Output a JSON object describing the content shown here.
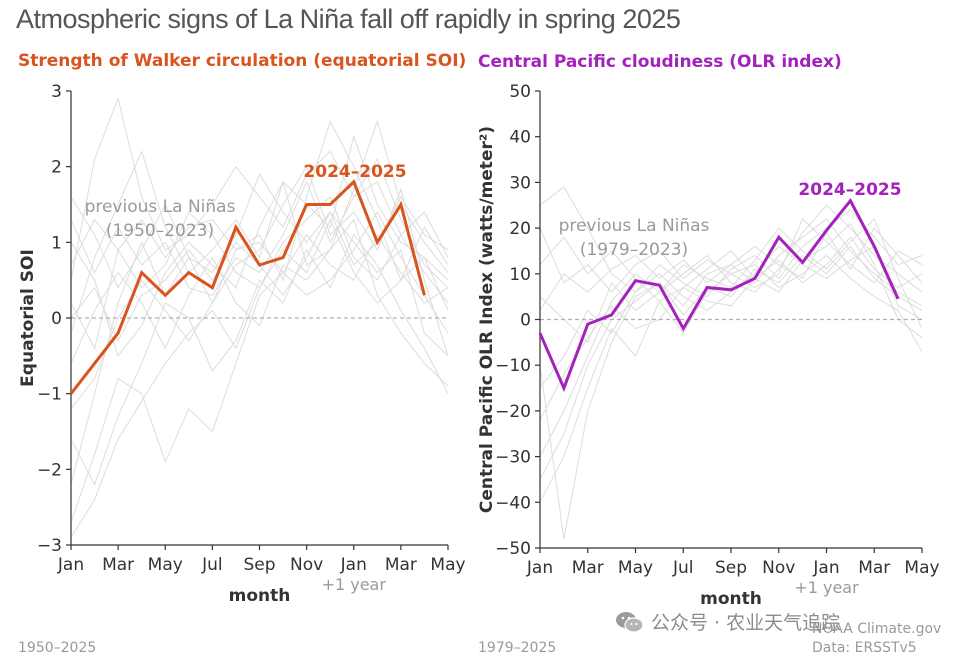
{
  "title": "Atmospheric signs of La Niña fall off rapidly in spring 2025",
  "colors": {
    "soi": "#d9541e",
    "olr": "#a322bc",
    "background_lines": "#dcdcdc",
    "axis": "#333333",
    "zero": "#b0b0b0",
    "note": "#9a9a9a"
  },
  "chart_data": [
    {
      "type": "line",
      "title": "Strength of Walker circulation (equatorial SOI)",
      "ylabel": "Equatorial SOI",
      "xlabel": "month",
      "ylim": [
        -3,
        3
      ],
      "yticks": [
        "3",
        "2",
        "1",
        "0",
        "−1",
        "−2",
        "−3"
      ],
      "ytick_values": [
        3,
        2,
        1,
        0,
        -1,
        -2,
        -3
      ],
      "xticks": [
        "Jan",
        "Mar",
        "May",
        "Jul",
        "Sep",
        "Nov",
        "Jan",
        "Mar",
        "May"
      ],
      "xtick_months": [
        0,
        2,
        4,
        6,
        8,
        10,
        12,
        14,
        16
      ],
      "year_note": "+1 year",
      "background_label": "previous La Niñas\n(1950–2023)",
      "series_label": "2024–2025",
      "period_note": "1950–2025",
      "series": [
        {
          "name": "2024–2025",
          "x": [
            0,
            1,
            2,
            3,
            4,
            5,
            6,
            7,
            8,
            9,
            10,
            11,
            12,
            13,
            14,
            15
          ],
          "values": [
            -1.0,
            -0.6,
            -0.2,
            0.6,
            0.3,
            0.6,
            0.4,
            1.2,
            0.7,
            0.8,
            1.5,
            1.5,
            1.8,
            1.0,
            1.5,
            0.3
          ]
        }
      ],
      "background_series": [
        [
          -0.2,
          0.8,
          1.5,
          2.2,
          1.2,
          0.6,
          0.9,
          1.3,
          0.8,
          1.8,
          1.5,
          1.2,
          2.4,
          1.5,
          1.0,
          0.8,
          0.5
        ],
        [
          0.5,
          2.1,
          2.9,
          1.6,
          0.9,
          1.1,
          1.5,
          2.0,
          1.6,
          1.2,
          1.9,
          2.2,
          1.6,
          1.8,
          1.1,
          0.6,
          0.2
        ],
        [
          -2.2,
          -1.0,
          0.2,
          1.0,
          0.3,
          0.8,
          0.2,
          0.9,
          1.1,
          0.5,
          1.6,
          2.6,
          2.0,
          1.3,
          0.5,
          1.2,
          0.7
        ],
        [
          1.0,
          0.5,
          -0.5,
          -0.1,
          0.6,
          1.0,
          0.7,
          0.4,
          1.2,
          1.8,
          0.7,
          0.9,
          1.7,
          2.6,
          1.5,
          1.0,
          0.6
        ],
        [
          -2.7,
          -1.8,
          -0.8,
          -1.0,
          -1.9,
          -1.2,
          -1.5,
          -0.6,
          0.3,
          0.6,
          0.3,
          0.5,
          0.9,
          1.4,
          0.8,
          0.3,
          -0.2
        ],
        [
          0.2,
          -0.4,
          0.9,
          0.4,
          0.7,
          1.4,
          1.1,
          0.6,
          0.4,
          1.0,
          1.3,
          1.6,
          0.8,
          0.5,
          1.1,
          1.4,
          0.8
        ],
        [
          -1.6,
          -2.2,
          -1.3,
          -0.6,
          0.2,
          0.0,
          -0.7,
          -0.3,
          0.5,
          0.2,
          0.9,
          0.4,
          1.1,
          0.7,
          0.1,
          -0.4,
          -1.0
        ],
        [
          1.6,
          1.1,
          0.4,
          0.9,
          1.5,
          0.8,
          0.6,
          1.1,
          1.9,
          1.4,
          1.0,
          1.4,
          0.7,
          1.0,
          1.6,
          1.1,
          0.9
        ],
        [
          -0.6,
          0.1,
          0.6,
          0.2,
          -0.4,
          0.3,
          0.8,
          0.2,
          -0.1,
          0.7,
          0.5,
          0.9,
          1.3,
          0.3,
          -0.2,
          -0.6,
          -0.9
        ],
        [
          0.7,
          1.3,
          0.9,
          1.3,
          0.8,
          1.2,
          1.3,
          0.9,
          1.0,
          0.6,
          1.1,
          0.7,
          0.5,
          1.1,
          0.6,
          0.2,
          0.4
        ],
        [
          -1.2,
          -0.8,
          0.0,
          0.5,
          0.1,
          -0.3,
          0.2,
          0.7,
          0.9,
          1.5,
          2.0,
          1.1,
          1.4,
          0.9,
          1.7,
          0.5,
          -0.5
        ],
        [
          -2.9,
          -2.4,
          -1.6,
          -1.1,
          -0.6,
          -0.2,
          0.1,
          -0.4,
          0.4,
          0.9,
          0.6,
          1.3,
          0.6,
          0.2,
          0.5,
          0.8,
          0.1
        ],
        [
          1.3,
          0.6,
          1.2,
          0.7,
          1.0,
          0.4,
          0.3,
          0.8,
          0.6,
          1.1,
          1.8,
          1.0,
          1.6,
          2.1,
          1.3,
          0.7,
          0.4
        ],
        [
          0.0,
          0.4,
          -0.3,
          0.3,
          0.5,
          0.9,
          0.5,
          1.0,
          0.7,
          0.3,
          0.8,
          1.4,
          1.0,
          0.6,
          0.9,
          -0.2,
          -0.5
        ]
      ]
    },
    {
      "type": "line",
      "title": "Central Pacific cloudiness (OLR index)",
      "ylabel": "Central Pacific OLR Index (watts/meter²)",
      "xlabel": "month",
      "ylim": [
        -50,
        50
      ],
      "yticks": [
        "50",
        "40",
        "30",
        "20",
        "10",
        "0",
        "−10",
        "−20",
        "−30",
        "−40",
        "−50"
      ],
      "ytick_values": [
        50,
        40,
        30,
        20,
        10,
        0,
        -10,
        -20,
        -30,
        -40,
        -50
      ],
      "xticks": [
        "Jan",
        "Mar",
        "May",
        "Jul",
        "Sep",
        "Nov",
        "Jan",
        "Mar",
        "May"
      ],
      "xtick_months": [
        0,
        2,
        4,
        6,
        8,
        10,
        12,
        14,
        16
      ],
      "year_note": "+1 year",
      "background_label": "previous La Niñas\n(1979–2023)",
      "series_label": "2024–2025",
      "period_note": "1979–2025",
      "series": [
        {
          "name": "2024–2025",
          "x": [
            0,
            1,
            2,
            3,
            4,
            5,
            6,
            7,
            8,
            9,
            10,
            11,
            12,
            13,
            14,
            15
          ],
          "values": [
            -3,
            -15,
            -1,
            1,
            8.5,
            7.5,
            -2,
            7,
            6.5,
            9,
            18,
            12.5,
            19.5,
            26,
            16,
            4.5
          ]
        }
      ],
      "background_series": [
        [
          -10,
          -48,
          -20,
          -5,
          5,
          8,
          3,
          10,
          12,
          8,
          14,
          18,
          22,
          15,
          10,
          6,
          3
        ],
        [
          25,
          29,
          20,
          10,
          6,
          12,
          8,
          5,
          11,
          14,
          9,
          16,
          20,
          24,
          18,
          12,
          14
        ],
        [
          -30,
          -20,
          -8,
          4,
          10,
          6,
          12,
          9,
          7,
          13,
          20,
          15,
          11,
          17,
          22,
          9,
          -2
        ],
        [
          5,
          0,
          -5,
          8,
          2,
          6,
          10,
          14,
          8,
          6,
          11,
          19,
          25,
          20,
          14,
          10,
          6
        ],
        [
          -40,
          -30,
          -15,
          -2,
          -8,
          4,
          -3,
          6,
          10,
          12,
          7,
          10,
          14,
          9,
          5,
          2,
          -7
        ],
        [
          12,
          18,
          10,
          15,
          9,
          4,
          7,
          11,
          15,
          9,
          13,
          8,
          12,
          18,
          11,
          7,
          10
        ],
        [
          -15,
          -8,
          2,
          -3,
          6,
          10,
          5,
          2,
          6,
          10,
          16,
          12,
          9,
          13,
          16,
          3,
          0
        ],
        [
          20,
          8,
          12,
          6,
          12,
          15,
          9,
          13,
          10,
          7,
          10,
          22,
          17,
          12,
          8,
          15,
          12
        ],
        [
          -22,
          -12,
          -4,
          3,
          -2,
          0,
          7,
          4,
          3,
          9,
          6,
          13,
          16,
          21,
          12,
          0,
          -4
        ],
        [
          2,
          10,
          6,
          11,
          14,
          9,
          13,
          8,
          12,
          16,
          12,
          9,
          19,
          11,
          20,
          14,
          8
        ],
        [
          -35,
          -25,
          -10,
          0,
          4,
          8,
          1,
          7,
          5,
          11,
          8,
          14,
          10,
          16,
          9,
          5,
          2
        ]
      ]
    }
  ],
  "sources": {
    "line1": "NOAA Climate.gov",
    "line2": "Data: ERSSTv5"
  },
  "watermark": {
    "text": "公众号 · 农业天气追踪",
    "icon": "wechat-icon"
  }
}
